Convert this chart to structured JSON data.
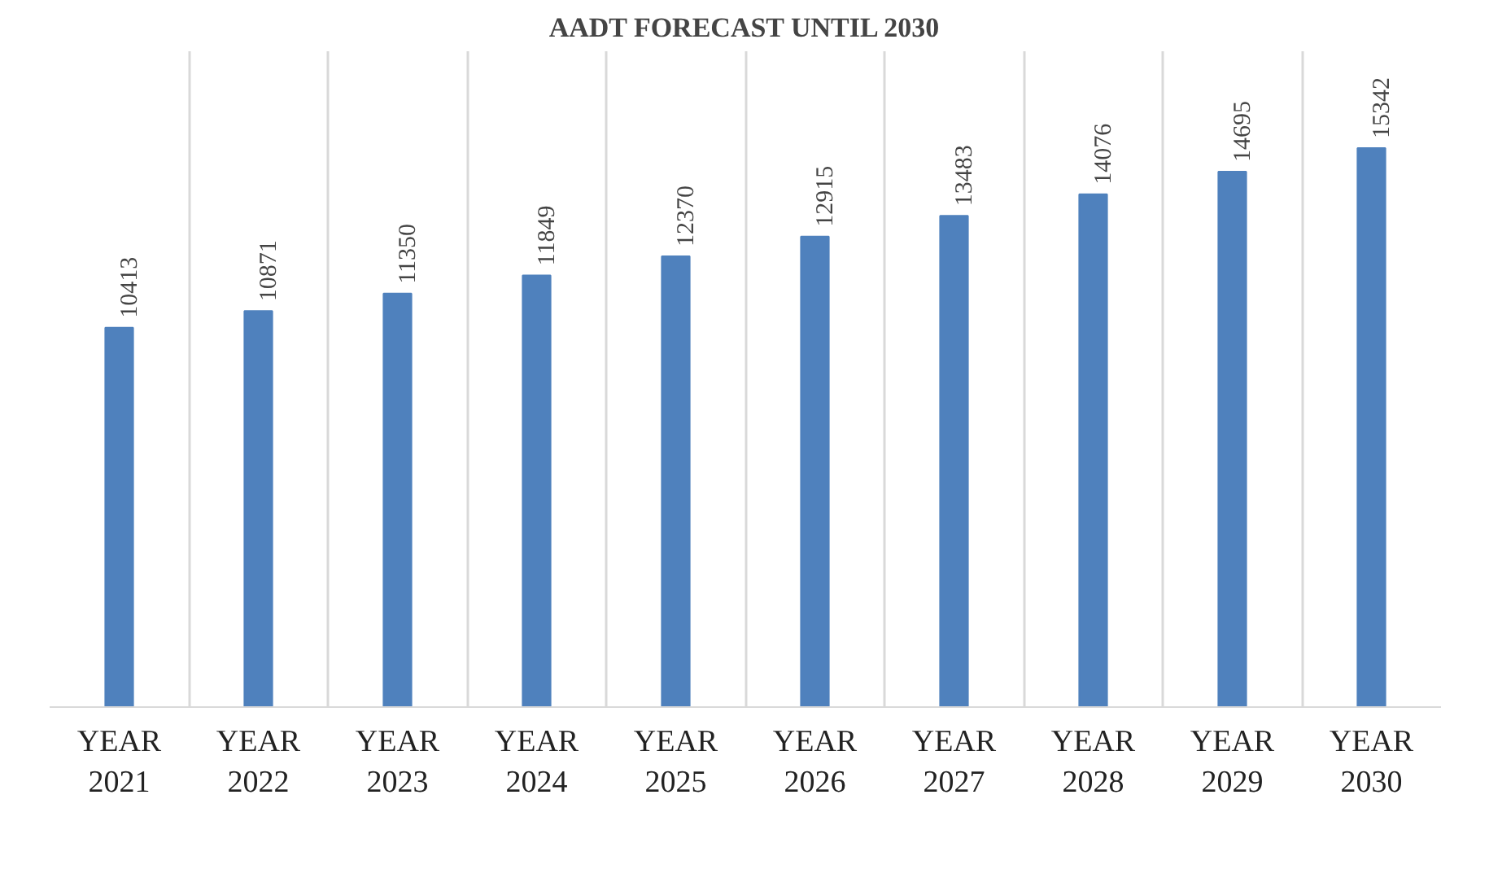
{
  "chart_data": {
    "type": "bar",
    "title": "AADT FORECAST UNTIL 2030",
    "categories": [
      "YEAR 2021",
      "YEAR 2022",
      "YEAR 2023",
      "YEAR 2024",
      "YEAR 2025",
      "YEAR 2026",
      "YEAR 2027",
      "YEAR 2028",
      "YEAR 2029",
      "YEAR 2030"
    ],
    "values": [
      10413,
      10871,
      11350,
      11849,
      12370,
      12915,
      13483,
      14076,
      14695,
      15342
    ],
    "color": "#4f81bd",
    "ylim": [
      0,
      18000
    ],
    "data_labels": true,
    "grid": "x"
  }
}
